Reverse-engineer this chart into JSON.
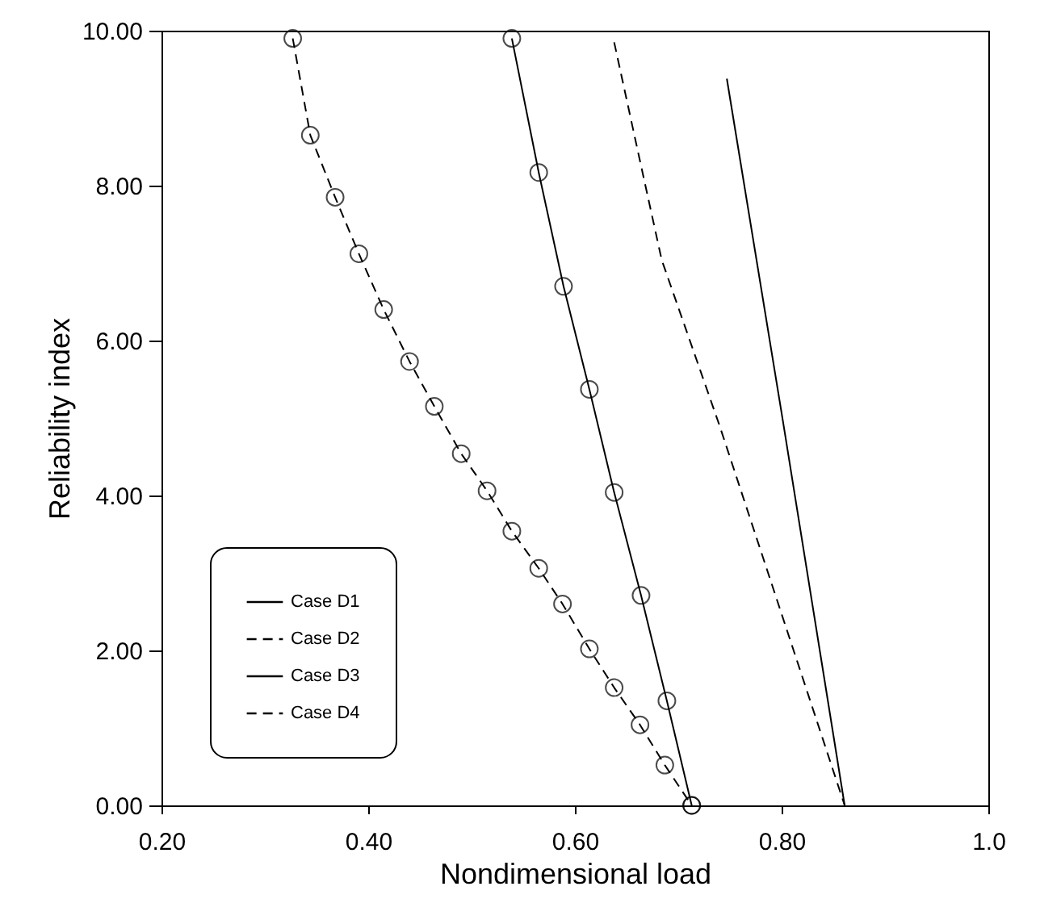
{
  "chart_data": {
    "type": "line",
    "xlabel": "Nondimensional load",
    "ylabel": "Reliability index",
    "xlim": [
      0.2,
      1.0
    ],
    "ylim": [
      0,
      10
    ],
    "xticks": [
      {
        "value": 0.2,
        "label": "0.20"
      },
      {
        "value": 0.4,
        "label": "0.40"
      },
      {
        "value": 0.6,
        "label": "0.60"
      },
      {
        "value": 0.8,
        "label": "0.80"
      },
      {
        "value": 1.0,
        "label": "1.0"
      }
    ],
    "yticks": [
      {
        "value": 0,
        "label": "0.00"
      },
      {
        "value": 2,
        "label": "2.00"
      },
      {
        "value": 4,
        "label": "4.00"
      },
      {
        "value": 6,
        "label": "6.00"
      },
      {
        "value": 8,
        "label": "8.00"
      },
      {
        "value": 10,
        "label": "10.00"
      }
    ],
    "grid": false,
    "legend": "bottom left",
    "series": [
      {
        "name": "Case D1",
        "color": "#000000",
        "line_style": "solid",
        "marker": "none",
        "x": [
          0.747,
          0.802,
          0.861
        ],
        "values": [
          9.38,
          4.9,
          0
        ]
      },
      {
        "name": "Case D2",
        "color": "#000000",
        "line_style": "dashed",
        "marker": "none",
        "x": [
          0.638,
          0.66,
          0.684,
          0.74,
          0.861
        ],
        "values": [
          9.85,
          8.5,
          7.04,
          4.9,
          0
        ]
      },
      {
        "name": "Case D3",
        "color": "#000000",
        "line_style": "solid",
        "marker": "circle",
        "x": [
          0.539,
          0.565,
          0.589,
          0.614,
          0.638,
          0.664,
          0.689,
          0.713
        ],
        "values": [
          9.9,
          8.17,
          6.7,
          5.37,
          4.04,
          2.71,
          1.35,
          0
        ]
      },
      {
        "name": "Case D4",
        "color": "#000000",
        "line_style": "dashed",
        "marker": "circle",
        "x": [
          0.327,
          0.344,
          0.368,
          0.391,
          0.415,
          0.44,
          0.464,
          0.49,
          0.515,
          0.539,
          0.565,
          0.588,
          0.614,
          0.638,
          0.663,
          0.687,
          0.713
        ],
        "values": [
          9.9,
          8.65,
          7.85,
          7.12,
          6.4,
          5.73,
          5.15,
          4.54,
          4.06,
          3.54,
          3.06,
          2.6,
          2.02,
          1.52,
          1.04,
          0.52,
          0
        ]
      }
    ]
  }
}
